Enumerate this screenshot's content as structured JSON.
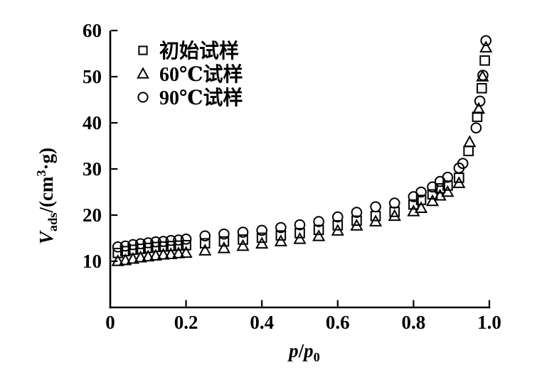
{
  "chart_data": {
    "type": "scatter",
    "title": "",
    "xlabel_text": "p/p0",
    "ylabel_text": "Vads/(cm3·g)",
    "xlabel_parts": [
      {
        "t": "p",
        "s": "i"
      },
      {
        "t": "/",
        "s": "n"
      },
      {
        "t": "p",
        "s": "i"
      },
      {
        "t": "0",
        "s": "sub"
      }
    ],
    "ylabel_parts": [
      {
        "t": "V",
        "s": "i"
      },
      {
        "t": "ads",
        "s": "sub"
      },
      {
        "t": "/(cm",
        "s": "n"
      },
      {
        "t": "3",
        "s": "sup"
      },
      {
        "t": "·g)",
        "s": "n"
      }
    ],
    "xlim": [
      0,
      1.0
    ],
    "ylim": [
      0,
      60
    ],
    "xticks": {
      "values": [
        0,
        0.2,
        0.4,
        0.6,
        0.8,
        1.0
      ],
      "labels": [
        "0",
        "0.2",
        "0.4",
        "0.6",
        "0.8",
        "1.0"
      ]
    },
    "yticks": {
      "values": [
        10,
        20,
        30,
        40,
        50,
        60
      ],
      "labels": [
        "10",
        "20",
        "30",
        "40",
        "50",
        "60"
      ]
    },
    "grid": false,
    "legend": {
      "position": "top-left"
    },
    "colors": {
      "foreground": "#000000",
      "background": "#ffffff"
    },
    "series": [
      {
        "name": "初始试样",
        "marker": "square",
        "x": [
          0.02,
          0.04,
          0.06,
          0.08,
          0.1,
          0.12,
          0.14,
          0.16,
          0.18,
          0.2,
          0.25,
          0.3,
          0.35,
          0.4,
          0.45,
          0.5,
          0.55,
          0.6,
          0.65,
          0.7,
          0.75,
          0.8,
          0.82,
          0.85,
          0.87,
          0.89,
          0.92,
          0.945,
          0.968,
          0.98,
          0.988
        ],
        "y": [
          11.8,
          12.2,
          12.5,
          12.7,
          12.9,
          13.1,
          13.2,
          13.3,
          13.4,
          13.5,
          13.9,
          14.3,
          14.7,
          15.1,
          15.6,
          16.1,
          16.8,
          17.8,
          18.8,
          19.8,
          20.7,
          22.3,
          23.3,
          24.5,
          25.8,
          26.4,
          28.1,
          33.9,
          41.3,
          47.5,
          53.5
        ]
      },
      {
        "name": "60℃试样",
        "marker": "triangle",
        "x": [
          0.02,
          0.04,
          0.06,
          0.08,
          0.1,
          0.12,
          0.14,
          0.16,
          0.18,
          0.2,
          0.25,
          0.3,
          0.35,
          0.4,
          0.45,
          0.5,
          0.55,
          0.6,
          0.65,
          0.7,
          0.75,
          0.8,
          0.82,
          0.85,
          0.87,
          0.89,
          0.92,
          0.948,
          0.972,
          0.982,
          0.991
        ],
        "y": [
          10.0,
          10.2,
          10.5,
          10.8,
          11.0,
          11.2,
          11.4,
          11.5,
          11.7,
          11.8,
          12.3,
          12.8,
          13.3,
          13.8,
          14.3,
          14.8,
          15.4,
          16.6,
          17.7,
          18.6,
          19.8,
          20.8,
          21.5,
          23.0,
          24.2,
          25.0,
          26.9,
          35.8,
          43.0,
          50.0,
          56.3
        ]
      },
      {
        "name": "90℃试样",
        "marker": "circle",
        "x": [
          0.02,
          0.04,
          0.06,
          0.08,
          0.1,
          0.12,
          0.14,
          0.16,
          0.18,
          0.2,
          0.25,
          0.3,
          0.35,
          0.4,
          0.45,
          0.5,
          0.55,
          0.6,
          0.65,
          0.7,
          0.75,
          0.8,
          0.82,
          0.85,
          0.87,
          0.89,
          0.92,
          0.93,
          0.965,
          0.975,
          0.983,
          0.991
        ],
        "y": [
          13.1,
          13.3,
          13.6,
          13.8,
          14.0,
          14.2,
          14.3,
          14.5,
          14.6,
          14.8,
          15.5,
          15.9,
          16.3,
          16.7,
          17.3,
          17.9,
          18.6,
          19.6,
          20.6,
          21.8,
          22.6,
          24.0,
          25.0,
          26.1,
          27.3,
          28.2,
          30.2,
          31.2,
          38.9,
          44.7,
          50.3,
          57.8
        ]
      }
    ]
  }
}
